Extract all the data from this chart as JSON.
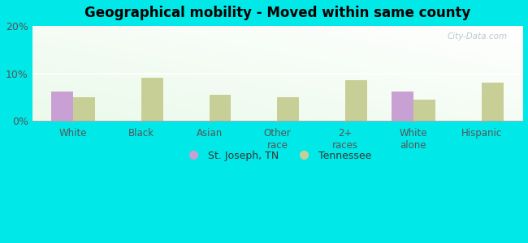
{
  "title": "Geographical mobility - Moved within same county",
  "categories": [
    "White",
    "Black",
    "Asian",
    "Other\nrace",
    "2+\nraces",
    "White\nalone",
    "Hispanic"
  ],
  "st_joseph": [
    6.2,
    0,
    0,
    0,
    0,
    6.2,
    0
  ],
  "tennessee": [
    5.0,
    9.0,
    5.5,
    5.0,
    8.5,
    4.5,
    8.0
  ],
  "sj_color": "#c8a0d4",
  "tn_color": "#c8cf96",
  "bg_color": "#00e8e8",
  "ylim": [
    0,
    20
  ],
  "yticks": [
    0,
    10,
    20
  ],
  "ytick_labels": [
    "0%",
    "10%",
    "20%"
  ],
  "bar_width": 0.32,
  "legend_sj": "St. Joseph, TN",
  "legend_tn": "Tennessee",
  "title_fontsize": 12,
  "watermark": "City-Data.com"
}
